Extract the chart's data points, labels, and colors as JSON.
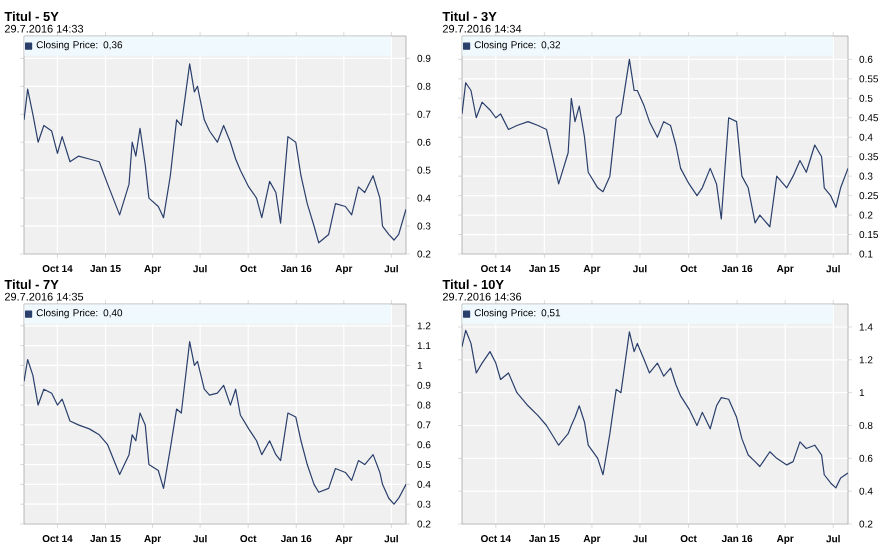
{
  "chart_data": [
    {
      "type": "line",
      "title": "Titul - 5Y",
      "subtitle": "29.7.2016 14:33",
      "grid": true,
      "legend": "top left",
      "xlim": [
        "2014-07-29",
        "2016-07-29"
      ],
      "ylim": [
        0.2,
        0.98
      ],
      "yticks": [
        0.2,
        0.3,
        0.4,
        0.5,
        0.6,
        0.7,
        0.8,
        0.9
      ],
      "xticks": [
        {
          "value": "2014-10-01",
          "label": "Oct 14"
        },
        {
          "value": "2015-01-01",
          "label": "Jan 15"
        },
        {
          "value": "2015-04-01",
          "label": "Apr"
        },
        {
          "value": "2015-07-01",
          "label": "Jul"
        },
        {
          "value": "2015-10-01",
          "label": "Oct"
        },
        {
          "value": "2016-01-01",
          "label": "Jan 16"
        },
        {
          "value": "2016-04-01",
          "label": "Apr"
        },
        {
          "value": "2016-07-01",
          "label": "Jul"
        }
      ],
      "x": [
        "2014-07-29",
        "2014-08-05",
        "2014-08-15",
        "2014-08-25",
        "2014-09-05",
        "2014-09-20",
        "2014-10-01",
        "2014-10-10",
        "2014-10-25",
        "2014-11-10",
        "2014-12-01",
        "2014-12-20",
        "2015-01-05",
        "2015-01-28",
        "2015-02-15",
        "2015-02-21",
        "2015-02-28",
        "2015-03-08",
        "2015-03-18",
        "2015-03-25",
        "2015-04-12",
        "2015-04-22",
        "2015-05-05",
        "2015-05-17",
        "2015-05-26",
        "2015-06-11",
        "2015-06-20",
        "2015-06-26",
        "2015-07-09",
        "2015-07-19",
        "2015-08-03",
        "2015-08-15",
        "2015-08-28",
        "2015-09-07",
        "2015-09-16",
        "2015-10-02",
        "2015-10-17",
        "2015-10-27",
        "2015-11-11",
        "2015-11-23",
        "2015-12-02",
        "2015-12-16",
        "2015-12-31",
        "2016-01-10",
        "2016-01-22",
        "2016-02-04",
        "2016-02-13",
        "2016-03-03",
        "2016-03-16",
        "2016-04-04",
        "2016-04-16",
        "2016-04-29",
        "2016-05-11",
        "2016-05-27",
        "2016-06-09",
        "2016-06-14",
        "2016-06-26",
        "2016-07-06",
        "2016-07-15",
        "2016-07-29"
      ],
      "series": [
        {
          "name": "Closing Price: 0,36",
          "color": "#2a3f6b",
          "values": [
            0.68,
            0.79,
            0.7,
            0.6,
            0.66,
            0.64,
            0.56,
            0.62,
            0.53,
            0.55,
            0.54,
            0.53,
            0.45,
            0.34,
            0.45,
            0.6,
            0.55,
            0.65,
            0.52,
            0.4,
            0.37,
            0.33,
            0.48,
            0.68,
            0.66,
            0.88,
            0.78,
            0.8,
            0.68,
            0.64,
            0.6,
            0.66,
            0.6,
            0.54,
            0.5,
            0.44,
            0.4,
            0.33,
            0.46,
            0.42,
            0.31,
            0.62,
            0.6,
            0.48,
            0.38,
            0.3,
            0.24,
            0.27,
            0.38,
            0.37,
            0.34,
            0.44,
            0.42,
            0.48,
            0.4,
            0.3,
            0.27,
            0.25,
            0.27,
            0.36
          ]
        }
      ]
    },
    {
      "type": "line",
      "title": "Titul - 3Y",
      "subtitle": "29.7.2016 14:34",
      "grid": true,
      "legend": "top left",
      "xlim": [
        "2014-07-29",
        "2016-07-29"
      ],
      "ylim": [
        0.1,
        0.66
      ],
      "yticks": [
        0.1,
        0.15,
        0.2,
        0.25,
        0.3,
        0.35,
        0.4,
        0.45,
        0.5,
        0.55,
        0.6
      ],
      "xticks": [
        {
          "value": "2014-10-01",
          "label": "Oct 14"
        },
        {
          "value": "2015-01-01",
          "label": "Jan 15"
        },
        {
          "value": "2015-04-01",
          "label": "Apr"
        },
        {
          "value": "2015-07-01",
          "label": "Jul"
        },
        {
          "value": "2015-10-01",
          "label": "Oct"
        },
        {
          "value": "2016-01-01",
          "label": "Jan 16"
        },
        {
          "value": "2016-04-01",
          "label": "Apr"
        },
        {
          "value": "2016-07-01",
          "label": "Jul"
        }
      ],
      "x": [
        "2014-07-29",
        "2014-08-05",
        "2014-08-15",
        "2014-08-25",
        "2014-09-05",
        "2014-09-20",
        "2014-10-01",
        "2014-10-10",
        "2014-10-25",
        "2014-11-10",
        "2014-12-01",
        "2014-12-20",
        "2015-01-05",
        "2015-01-28",
        "2015-02-15",
        "2015-02-21",
        "2015-02-28",
        "2015-03-08",
        "2015-03-18",
        "2015-03-25",
        "2015-04-12",
        "2015-04-22",
        "2015-05-05",
        "2015-05-17",
        "2015-05-26",
        "2015-06-11",
        "2015-06-20",
        "2015-06-26",
        "2015-07-09",
        "2015-07-19",
        "2015-08-03",
        "2015-08-15",
        "2015-08-28",
        "2015-09-07",
        "2015-09-16",
        "2015-10-02",
        "2015-10-17",
        "2015-10-27",
        "2015-11-11",
        "2015-11-23",
        "2015-12-02",
        "2015-12-16",
        "2015-12-31",
        "2016-01-10",
        "2016-01-22",
        "2016-02-04",
        "2016-02-13",
        "2016-03-03",
        "2016-03-16",
        "2016-04-04",
        "2016-04-16",
        "2016-04-29",
        "2016-05-11",
        "2016-05-27",
        "2016-06-09",
        "2016-06-14",
        "2016-06-26",
        "2016-07-06",
        "2016-07-15",
        "2016-07-29"
      ],
      "series": [
        {
          "name": "Closing Price: 0,32",
          "color": "#2a3f6b",
          "values": [
            0.46,
            0.54,
            0.52,
            0.45,
            0.49,
            0.47,
            0.45,
            0.46,
            0.42,
            0.43,
            0.44,
            0.43,
            0.42,
            0.28,
            0.36,
            0.5,
            0.44,
            0.48,
            0.4,
            0.31,
            0.27,
            0.26,
            0.3,
            0.45,
            0.46,
            0.6,
            0.52,
            0.52,
            0.48,
            0.44,
            0.4,
            0.44,
            0.43,
            0.38,
            0.32,
            0.28,
            0.25,
            0.27,
            0.32,
            0.28,
            0.19,
            0.45,
            0.44,
            0.3,
            0.27,
            0.18,
            0.2,
            0.17,
            0.3,
            0.27,
            0.3,
            0.34,
            0.31,
            0.38,
            0.35,
            0.27,
            0.25,
            0.22,
            0.27,
            0.32
          ]
        }
      ]
    },
    {
      "type": "line",
      "title": "Titul - 7Y",
      "subtitle": "29.7.2016 14:35",
      "grid": true,
      "legend": "top left",
      "xlim": [
        "2014-07-29",
        "2016-07-29"
      ],
      "ylim": [
        0.2,
        1.31
      ],
      "yticks": [
        0.2,
        0.3,
        0.4,
        0.5,
        0.6,
        0.7,
        0.8,
        0.9,
        1,
        1.1,
        1.2
      ],
      "xticks": [
        {
          "value": "2014-10-01",
          "label": "Oct 14"
        },
        {
          "value": "2015-01-01",
          "label": "Jan 15"
        },
        {
          "value": "2015-04-01",
          "label": "Apr"
        },
        {
          "value": "2015-07-01",
          "label": "Jul"
        },
        {
          "value": "2015-10-01",
          "label": "Oct"
        },
        {
          "value": "2016-01-01",
          "label": "Jan 16"
        },
        {
          "value": "2016-04-01",
          "label": "Apr"
        },
        {
          "value": "2016-07-01",
          "label": "Jul"
        }
      ],
      "x": [
        "2014-07-29",
        "2014-08-05",
        "2014-08-15",
        "2014-08-25",
        "2014-09-05",
        "2014-09-20",
        "2014-10-01",
        "2014-10-10",
        "2014-10-25",
        "2014-11-10",
        "2014-12-01",
        "2014-12-20",
        "2015-01-05",
        "2015-01-28",
        "2015-02-15",
        "2015-02-21",
        "2015-02-28",
        "2015-03-08",
        "2015-03-18",
        "2015-03-25",
        "2015-04-12",
        "2015-04-22",
        "2015-05-05",
        "2015-05-17",
        "2015-05-26",
        "2015-06-11",
        "2015-06-20",
        "2015-06-26",
        "2015-07-09",
        "2015-07-19",
        "2015-08-03",
        "2015-08-15",
        "2015-08-28",
        "2015-09-07",
        "2015-09-16",
        "2015-10-02",
        "2015-10-17",
        "2015-10-27",
        "2015-11-11",
        "2015-11-23",
        "2015-12-02",
        "2015-12-16",
        "2015-12-31",
        "2016-01-10",
        "2016-01-22",
        "2016-02-04",
        "2016-02-13",
        "2016-03-03",
        "2016-03-16",
        "2016-04-04",
        "2016-04-16",
        "2016-04-29",
        "2016-05-11",
        "2016-05-27",
        "2016-06-09",
        "2016-06-14",
        "2016-06-26",
        "2016-07-06",
        "2016-07-15",
        "2016-07-29"
      ],
      "series": [
        {
          "name": "Closing Price: 0,40",
          "color": "#2a3f6b",
          "values": [
            0.92,
            1.03,
            0.95,
            0.8,
            0.88,
            0.86,
            0.8,
            0.83,
            0.72,
            0.7,
            0.68,
            0.65,
            0.6,
            0.45,
            0.55,
            0.65,
            0.62,
            0.76,
            0.7,
            0.5,
            0.47,
            0.38,
            0.58,
            0.78,
            0.76,
            1.12,
            1.0,
            1.02,
            0.88,
            0.85,
            0.86,
            0.9,
            0.8,
            0.88,
            0.75,
            0.68,
            0.62,
            0.55,
            0.62,
            0.55,
            0.52,
            0.76,
            0.74,
            0.62,
            0.5,
            0.4,
            0.36,
            0.38,
            0.48,
            0.46,
            0.42,
            0.52,
            0.5,
            0.55,
            0.46,
            0.4,
            0.33,
            0.3,
            0.33,
            0.4
          ]
        }
      ]
    },
    {
      "type": "line",
      "title": "Titul - 10Y",
      "subtitle": "29.7.2016 14:36",
      "grid": true,
      "legend": "top left",
      "xlim": [
        "2014-07-29",
        "2016-07-29"
      ],
      "ylim": [
        0.2,
        1.54
      ],
      "yticks": [
        0.2,
        0.4,
        0.6,
        0.8,
        1,
        1.2,
        1.4
      ],
      "xticks": [
        {
          "value": "2014-10-01",
          "label": "Oct 14"
        },
        {
          "value": "2015-01-01",
          "label": "Jan 15"
        },
        {
          "value": "2015-04-01",
          "label": "Apr"
        },
        {
          "value": "2015-07-01",
          "label": "Jul"
        },
        {
          "value": "2015-10-01",
          "label": "Oct"
        },
        {
          "value": "2016-01-01",
          "label": "Jan 16"
        },
        {
          "value": "2016-04-01",
          "label": "Apr"
        },
        {
          "value": "2016-07-01",
          "label": "Jul"
        }
      ],
      "x": [
        "2014-07-29",
        "2014-08-05",
        "2014-08-15",
        "2014-08-25",
        "2014-09-05",
        "2014-09-20",
        "2014-10-01",
        "2014-10-10",
        "2014-10-25",
        "2014-11-10",
        "2014-12-01",
        "2014-12-20",
        "2015-01-05",
        "2015-01-28",
        "2015-02-15",
        "2015-02-21",
        "2015-02-28",
        "2015-03-08",
        "2015-03-18",
        "2015-03-25",
        "2015-04-12",
        "2015-04-22",
        "2015-05-05",
        "2015-05-17",
        "2015-05-26",
        "2015-06-11",
        "2015-06-20",
        "2015-06-26",
        "2015-07-09",
        "2015-07-19",
        "2015-08-03",
        "2015-08-15",
        "2015-08-28",
        "2015-09-07",
        "2015-09-16",
        "2015-10-02",
        "2015-10-17",
        "2015-10-27",
        "2015-11-11",
        "2015-11-23",
        "2015-12-02",
        "2015-12-16",
        "2015-12-31",
        "2016-01-10",
        "2016-01-22",
        "2016-02-04",
        "2016-02-13",
        "2016-03-03",
        "2016-03-16",
        "2016-04-04",
        "2016-04-16",
        "2016-04-29",
        "2016-05-11",
        "2016-05-27",
        "2016-06-09",
        "2016-06-14",
        "2016-06-26",
        "2016-07-06",
        "2016-07-15",
        "2016-07-29"
      ],
      "series": [
        {
          "name": "Closing Price: 0,51",
          "color": "#2a3f6b",
          "values": [
            1.28,
            1.38,
            1.3,
            1.12,
            1.18,
            1.25,
            1.18,
            1.08,
            1.12,
            1.0,
            0.92,
            0.86,
            0.8,
            0.68,
            0.75,
            0.8,
            0.85,
            0.92,
            0.82,
            0.68,
            0.6,
            0.5,
            0.75,
            1.02,
            1.0,
            1.37,
            1.25,
            1.3,
            1.2,
            1.12,
            1.18,
            1.1,
            1.15,
            1.05,
            0.98,
            0.9,
            0.8,
            0.88,
            0.78,
            0.92,
            0.97,
            0.96,
            0.85,
            0.72,
            0.62,
            0.58,
            0.55,
            0.64,
            0.6,
            0.56,
            0.58,
            0.7,
            0.66,
            0.68,
            0.62,
            0.5,
            0.45,
            0.42,
            0.48,
            0.51
          ]
        }
      ]
    }
  ]
}
